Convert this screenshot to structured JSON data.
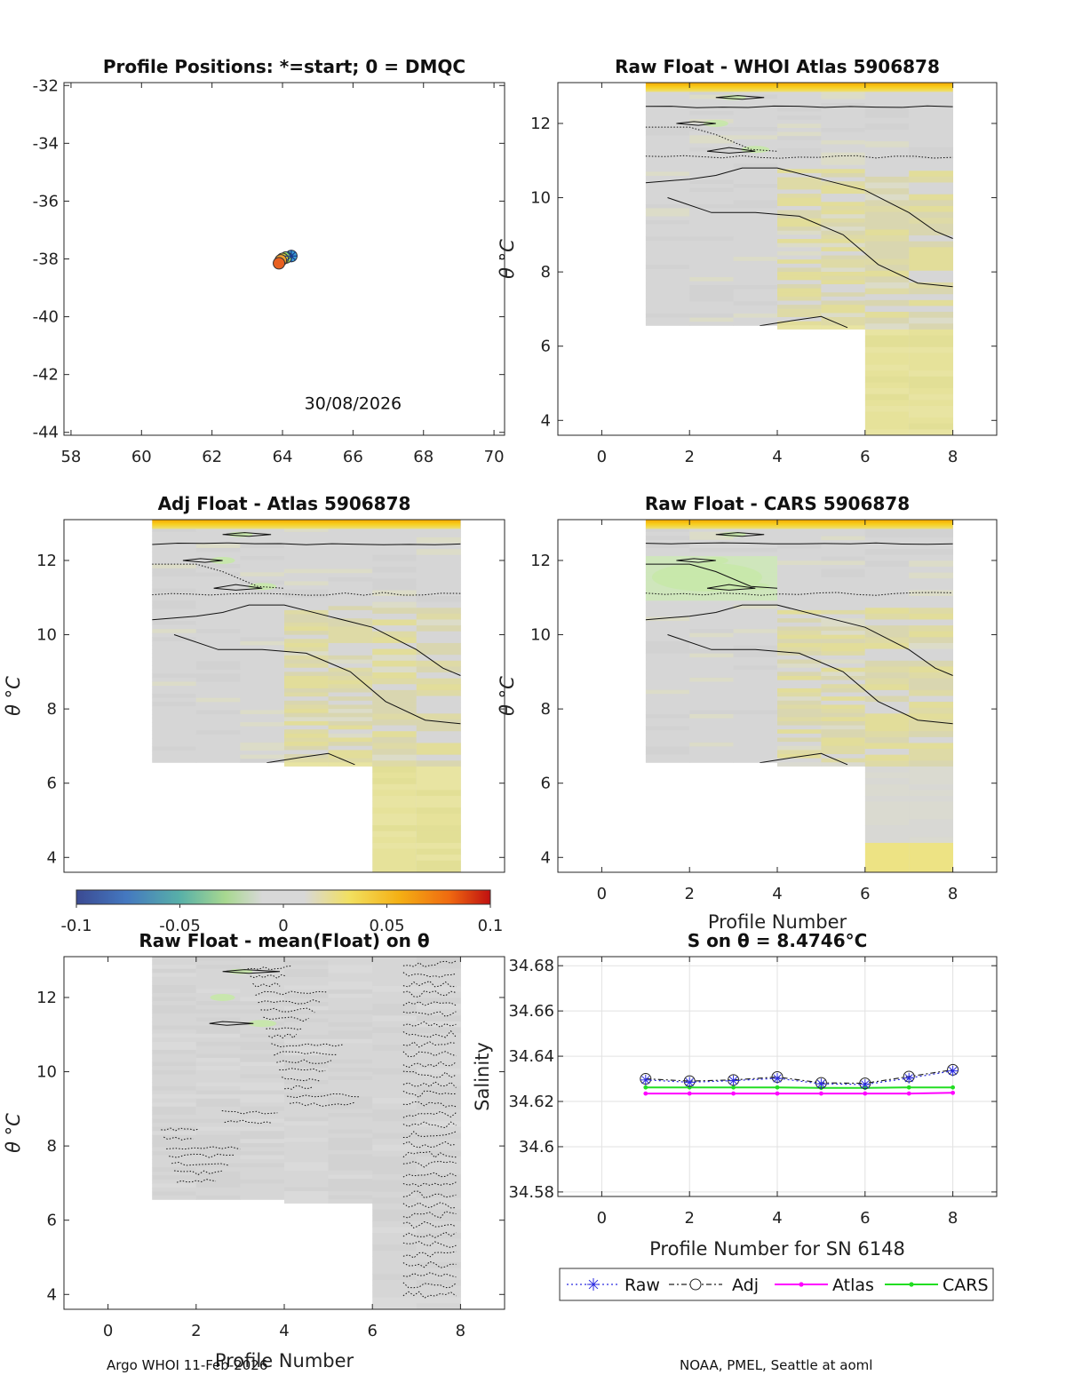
{
  "footer": {
    "left": "Argo WHOI 11-Feb-2026",
    "right": "NOAA, PMEL, Seattle at aoml"
  },
  "colorbar": {
    "ticks": [
      "-0.1",
      "-0.05",
      "0",
      "0.05",
      "0.1"
    ],
    "range": [
      -0.1,
      0.1
    ]
  },
  "chart_data": [
    {
      "id": "positions",
      "type": "scatter",
      "title": "Profile Positions: *=start; 0 = DMQC",
      "xlim": [
        57.8,
        70.3
      ],
      "ylim": [
        -44.1,
        -31.9
      ],
      "xticks": [
        "58",
        "60",
        "62",
        "64",
        "66",
        "68",
        "70"
      ],
      "yticks": [
        "-32",
        "-34",
        "-36",
        "-38",
        "-40",
        "-42",
        "-44"
      ],
      "annotation": "30/08/2026",
      "points": [
        {
          "lon": 64.25,
          "lat": -37.9,
          "color": "#3aa0d8"
        },
        {
          "lon": 64.1,
          "lat": -37.95,
          "color": "#8fd060"
        },
        {
          "lon": 64.0,
          "lat": -38.0,
          "color": "#d8d040"
        },
        {
          "lon": 63.95,
          "lat": -38.05,
          "color": "#f0a030"
        },
        {
          "lon": 63.9,
          "lat": -38.15,
          "color": "#e86020"
        }
      ],
      "start": {
        "lon": 64.25,
        "lat": -37.9
      }
    },
    {
      "id": "raw-whoi",
      "type": "heatmap",
      "title": "Raw Float - WHOI Atlas  5906878",
      "xlabel": "",
      "ylabel": "θ °C",
      "xlim": [
        -1,
        9
      ],
      "ylim": [
        3.6,
        13.1
      ],
      "xticks": [
        "0",
        "2",
        "4",
        "6",
        "8"
      ],
      "yticks": [
        "4",
        "6",
        "8",
        "10",
        "12"
      ],
      "columns_bottom": [
        6.55,
        6.55,
        6.55,
        6.45,
        6.45,
        3.6,
        3.6
      ]
    },
    {
      "id": "adj-atlas",
      "type": "heatmap",
      "title": "Adj Float - Atlas  5906878",
      "xlabel": "",
      "ylabel": "θ °C",
      "xlim": [
        -1,
        9
      ],
      "ylim": [
        3.6,
        13.1
      ],
      "xticks": [],
      "yticks": [
        "4",
        "6",
        "8",
        "10",
        "12"
      ],
      "columns_bottom": [
        6.55,
        6.55,
        6.55,
        6.45,
        6.45,
        3.6,
        3.6
      ]
    },
    {
      "id": "raw-cars",
      "type": "heatmap",
      "title": "Raw Float - CARS  5906878",
      "xlabel": "Profile Number",
      "ylabel": "θ °C",
      "xlim": [
        -1,
        9
      ],
      "ylim": [
        3.6,
        13.1
      ],
      "xticks": [
        "0",
        "2",
        "4",
        "6",
        "8"
      ],
      "yticks": [
        "4",
        "6",
        "8",
        "10",
        "12"
      ],
      "columns_bottom": [
        6.55,
        6.55,
        6.55,
        6.45,
        6.45,
        3.6,
        3.6
      ]
    },
    {
      "id": "raw-mean",
      "type": "heatmap",
      "title": "Raw Float - mean(Float) on θ",
      "xlabel": "Profile Number",
      "ylabel": "θ °C",
      "xlim": [
        -1,
        9
      ],
      "ylim": [
        3.6,
        13.1
      ],
      "xticks": [
        "0",
        "2",
        "4",
        "6",
        "8"
      ],
      "yticks": [
        "4",
        "6",
        "8",
        "10",
        "12"
      ],
      "columns_bottom": [
        6.55,
        6.55,
        6.55,
        6.45,
        6.45,
        3.6,
        3.6
      ]
    },
    {
      "id": "salinity",
      "type": "line",
      "title": "S on θ = 8.4746°C",
      "xlabel": "Profile Number for SN 6148",
      "ylabel": "Salinity",
      "xlim": [
        -1,
        9
      ],
      "ylim": [
        34.578,
        34.684
      ],
      "xticks": [
        "0",
        "2",
        "4",
        "6",
        "8"
      ],
      "yticks": [
        "34.58",
        "34.6",
        "34.62",
        "34.64",
        "34.66",
        "34.68"
      ],
      "grid": true,
      "legend_position": "bottom",
      "x": [
        1,
        2,
        3,
        4,
        5,
        6,
        7,
        8
      ],
      "series": [
        {
          "name": "Raw",
          "color": "#2a2ae0",
          "values": [
            34.6295,
            34.6285,
            34.6292,
            34.6302,
            34.6278,
            34.6275,
            34.6303,
            34.6335
          ]
        },
        {
          "name": "Adj",
          "color": "#222222",
          "values": [
            34.63,
            34.629,
            34.6295,
            34.6308,
            34.6282,
            34.628,
            34.631,
            34.634
          ]
        },
        {
          "name": "Atlas",
          "color": "#ff00ff",
          "values": [
            34.6235,
            34.6235,
            34.6235,
            34.6235,
            34.6235,
            34.6235,
            34.6235,
            34.6238
          ]
        },
        {
          "name": "CARS",
          "color": "#22dd22",
          "values": [
            34.6262,
            34.6262,
            34.6262,
            34.6262,
            34.626,
            34.626,
            34.6262,
            34.6262
          ]
        }
      ]
    }
  ]
}
